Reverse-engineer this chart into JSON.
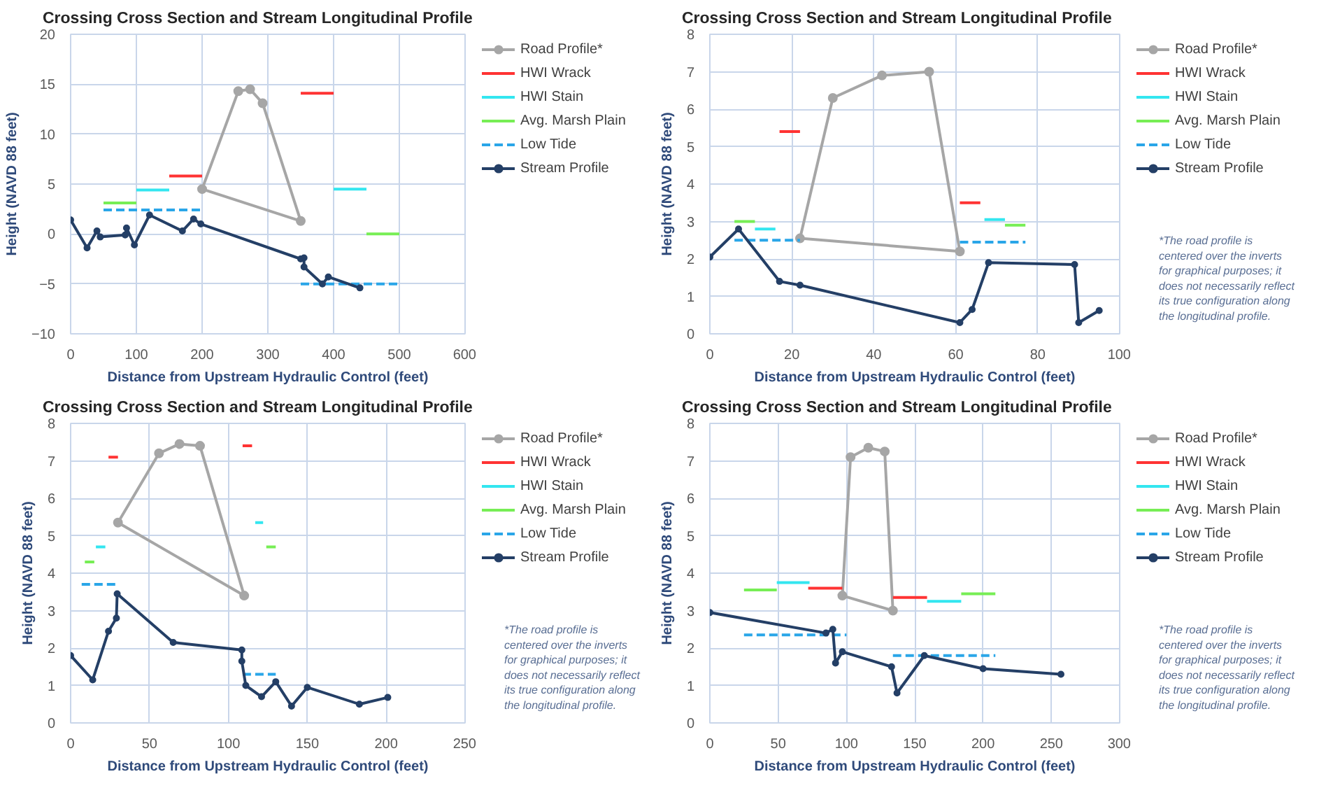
{
  "chart_data": [
    {
      "type": "line",
      "title": "Crossing Cross Section and Stream Longitudinal Profile",
      "xlabel": "Distance from Upstream Hydraulic Control (feet)",
      "ylabel": "Height (NAVD 88 feet)",
      "xlim": [
        0,
        600
      ],
      "xticks": [
        0,
        100,
        200,
        300,
        400,
        500,
        600
      ],
      "ylim": [
        -10,
        20
      ],
      "yticks": [
        -10,
        -5,
        0,
        5,
        10,
        15,
        20
      ],
      "grid": true,
      "legend": "right",
      "series": [
        {
          "name": "Road Profile*",
          "color": "#a6a6a6",
          "marker": "circle",
          "line_style": "solid",
          "x": [
            200,
            255,
            273,
            292,
            350
          ],
          "values": [
            4.5,
            14.3,
            14.5,
            13.1,
            1.3
          ]
        },
        {
          "color": "#a6a6a6",
          "marker": "none",
          "line_style": "solid",
          "x": [
            200,
            350
          ],
          "values": [
            4.5,
            1.3
          ]
        },
        {
          "name": "HWI Wrack",
          "color": "#ff3333",
          "marker": "none",
          "line_style": "solid",
          "x": [
            150,
            200,
            275,
            350,
            400
          ],
          "values": [
            5.8,
            5.8,
            null,
            14.1,
            14.1
          ]
        },
        {
          "name": "HWI Stain",
          "color": "#33e6f0",
          "marker": "none",
          "line_style": "solid",
          "x": [
            100,
            150,
            275,
            400,
            450
          ],
          "values": [
            4.4,
            4.4,
            null,
            4.5,
            4.5
          ]
        },
        {
          "name": "Avg. Marsh Plain",
          "color": "#77ee55",
          "marker": "none",
          "line_style": "solid",
          "x": [
            50,
            100,
            275,
            450,
            500
          ],
          "values": [
            3.1,
            3.1,
            null,
            0,
            0
          ]
        },
        {
          "name": "Low Tide",
          "color": "#2aa6e8",
          "marker": "none",
          "line_style": "dashed",
          "x": [
            50,
            200,
            275,
            350,
            500
          ],
          "values": [
            2.4,
            2.4,
            null,
            -5,
            -5
          ]
        },
        {
          "name": "Stream Profile",
          "color": "#243f66",
          "marker": "circle",
          "line_style": "solid",
          "x": [
            0,
            25,
            40,
            45,
            83,
            85,
            97,
            120,
            170,
            187,
            198,
            350,
            355,
            355,
            383,
            392,
            440
          ],
          "values": [
            1.4,
            -1.4,
            0.3,
            -0.3,
            -0.1,
            0.6,
            -1.1,
            1.9,
            0.3,
            1.5,
            1.0,
            -2.5,
            -2.4,
            -3.3,
            -5.0,
            -4.3,
            -5.4
          ]
        }
      ]
    },
    {
      "type": "line",
      "title": "Crossing Cross Section and Stream Longitudinal Profile",
      "xlabel": "Distance from Upstream Hydraulic Control (feet)",
      "ylabel": "Height (NAVD 88 feet)",
      "xlim": [
        0,
        100
      ],
      "xticks": [
        0,
        20,
        40,
        60,
        80,
        100
      ],
      "ylim": [
        0,
        8
      ],
      "yticks": [
        0,
        1,
        2,
        3,
        4,
        5,
        6,
        7,
        8
      ],
      "grid": true,
      "legend": "right",
      "annotations": [
        "*The road profile is centered over the inverts for graphical purposes; it does not necessarily reflect its true configuration along the longitudinal profile."
      ],
      "series": [
        {
          "name": "Road Profile*",
          "color": "#a6a6a6",
          "marker": "circle",
          "line_style": "solid",
          "x": [
            22,
            30,
            42,
            53.5,
            61
          ],
          "values": [
            2.55,
            6.3,
            6.9,
            7.0,
            2.2
          ]
        },
        {
          "color": "#a6a6a6",
          "marker": "none",
          "line_style": "solid",
          "x": [
            22,
            61
          ],
          "values": [
            2.55,
            2.2
          ]
        },
        {
          "name": "HWI Wrack",
          "color": "#ff3333",
          "marker": "none",
          "line_style": "solid",
          "x": [
            17,
            22,
            40,
            61,
            66
          ],
          "values": [
            5.4,
            5.4,
            null,
            3.5,
            3.5
          ]
        },
        {
          "name": "HWI Stain",
          "color": "#33e6f0",
          "marker": "none",
          "line_style": "solid",
          "x": [
            11,
            16,
            40,
            67,
            72
          ],
          "values": [
            2.8,
            2.8,
            null,
            3.05,
            3.05
          ]
        },
        {
          "name": "Avg. Marsh Plain",
          "color": "#77ee55",
          "marker": "none",
          "line_style": "solid",
          "x": [
            6,
            11,
            40,
            72,
            77
          ],
          "values": [
            3.0,
            3.0,
            null,
            2.9,
            2.9
          ]
        },
        {
          "name": "Low Tide",
          "color": "#2aa6e8",
          "marker": "none",
          "line_style": "dashed",
          "x": [
            6,
            22,
            40,
            61,
            77
          ],
          "values": [
            2.5,
            2.5,
            null,
            2.45,
            2.45
          ]
        },
        {
          "name": "Stream Profile",
          "color": "#243f66",
          "marker": "circle",
          "line_style": "solid",
          "x": [
            0,
            7,
            17,
            22,
            61,
            64,
            68,
            89,
            90,
            95
          ],
          "values": [
            2.05,
            2.8,
            1.4,
            1.3,
            0.3,
            0.65,
            1.9,
            1.85,
            0.3,
            0.62
          ]
        }
      ]
    },
    {
      "type": "line",
      "title": "Crossing Cross Section and Stream Longitudinal Profile",
      "xlabel": "Distance from Upstream Hydraulic Control (feet)",
      "ylabel": "Height (NAVD 88 feet)",
      "xlim": [
        0,
        250
      ],
      "xticks": [
        0,
        50,
        100,
        150,
        200,
        250
      ],
      "ylim": [
        0,
        8
      ],
      "yticks": [
        0,
        1,
        2,
        3,
        4,
        5,
        6,
        7,
        8
      ],
      "grid": true,
      "legend": "right",
      "annotations": [
        "*The road profile is centered over the inverts for graphical purposes; it does not necessarily reflect its true configuration along the longitudinal profile."
      ],
      "series": [
        {
          "name": "Road Profile*",
          "color": "#a6a6a6",
          "marker": "circle",
          "line_style": "solid",
          "x": [
            30,
            56,
            69,
            82,
            110
          ],
          "values": [
            5.35,
            7.2,
            7.45,
            7.4,
            3.4
          ]
        },
        {
          "color": "#a6a6a6",
          "marker": "none",
          "line_style": "solid",
          "x": [
            30,
            110
          ],
          "values": [
            5.35,
            3.4
          ]
        },
        {
          "name": "HWI Wrack",
          "color": "#ff3333",
          "marker": "none",
          "line_style": "solid",
          "x": [
            24,
            30,
            70,
            109,
            115
          ],
          "values": [
            7.1,
            7.1,
            null,
            7.4,
            7.4
          ]
        },
        {
          "name": "HWI Stain",
          "color": "#33e6f0",
          "marker": "none",
          "line_style": "solid",
          "x": [
            16,
            22,
            70,
            117,
            122
          ],
          "values": [
            4.7,
            4.7,
            null,
            5.35,
            5.35
          ]
        },
        {
          "name": "Avg. Marsh Plain",
          "color": "#77ee55",
          "marker": "none",
          "line_style": "solid",
          "x": [
            9,
            15,
            70,
            124,
            130
          ],
          "values": [
            4.3,
            4.3,
            null,
            4.7,
            4.7
          ]
        },
        {
          "name": "Low Tide",
          "color": "#2aa6e8",
          "marker": "none",
          "line_style": "dashed",
          "x": [
            7,
            30,
            70,
            109,
            130
          ],
          "values": [
            3.7,
            3.7,
            null,
            1.3,
            1.3
          ]
        },
        {
          "name": "Stream Profile",
          "color": "#243f66",
          "marker": "circle",
          "line_style": "solid",
          "x": [
            0,
            14,
            24,
            29,
            29.5,
            65,
            108.5,
            108.5,
            111,
            121,
            130,
            140,
            150,
            183,
            201
          ],
          "values": [
            1.8,
            1.15,
            2.45,
            2.8,
            3.45,
            2.15,
            1.95,
            1.65,
            1.0,
            0.7,
            1.1,
            0.45,
            0.95,
            0.5,
            0.68
          ]
        }
      ]
    },
    {
      "type": "line",
      "title": "Crossing Cross Section and Stream Longitudinal Profile",
      "xlabel": "Distance from Upstream Hydraulic Control (feet)",
      "ylabel": "Height (NAVD 88 feet)",
      "xlim": [
        0,
        300
      ],
      "xticks": [
        0,
        50,
        100,
        150,
        200,
        250,
        300
      ],
      "ylim": [
        0,
        8
      ],
      "yticks": [
        0,
        1,
        2,
        3,
        4,
        5,
        6,
        7,
        8
      ],
      "grid": true,
      "legend": "right",
      "annotations": [
        "*The road profile is centered over the inverts for graphical purposes; it does not necessarily reflect its true configuration along the longitudinal profile."
      ],
      "series": [
        {
          "name": "Road Profile*",
          "color": "#a6a6a6",
          "marker": "circle",
          "line_style": "solid",
          "x": [
            97,
            103,
            116,
            128,
            134
          ],
          "values": [
            3.4,
            7.1,
            7.35,
            7.25,
            3.0
          ]
        },
        {
          "color": "#a6a6a6",
          "marker": "none",
          "line_style": "solid",
          "x": [
            97,
            134
          ],
          "values": [
            3.4,
            3.0
          ]
        },
        {
          "name": "HWI Wrack",
          "color": "#ff3333",
          "marker": "none",
          "line_style": "solid",
          "x": [
            72,
            97,
            115,
            134,
            159
          ],
          "values": [
            3.6,
            3.6,
            null,
            3.35,
            3.35
          ]
        },
        {
          "name": "HWI Stain",
          "color": "#33e6f0",
          "marker": "none",
          "line_style": "solid",
          "x": [
            49,
            73,
            115,
            159,
            184
          ],
          "values": [
            3.75,
            3.75,
            null,
            3.25,
            3.25
          ]
        },
        {
          "name": "Avg. Marsh Plain",
          "color": "#77ee55",
          "marker": "none",
          "line_style": "solid",
          "x": [
            25,
            49,
            115,
            184,
            209
          ],
          "values": [
            3.55,
            3.55,
            null,
            3.45,
            3.45
          ]
        },
        {
          "name": "Low Tide",
          "color": "#2aa6e8",
          "marker": "none",
          "line_style": "dashed",
          "x": [
            25,
            100,
            115,
            134,
            209
          ],
          "values": [
            2.35,
            2.35,
            null,
            1.8,
            1.8
          ]
        },
        {
          "name": "Stream Profile",
          "color": "#243f66",
          "marker": "circle",
          "line_style": "solid",
          "x": [
            0,
            85,
            90,
            92,
            97,
            133,
            137,
            157,
            200,
            257
          ],
          "values": [
            2.95,
            2.4,
            2.5,
            1.6,
            1.9,
            1.5,
            0.8,
            1.8,
            1.45,
            1.3
          ]
        }
      ]
    }
  ]
}
